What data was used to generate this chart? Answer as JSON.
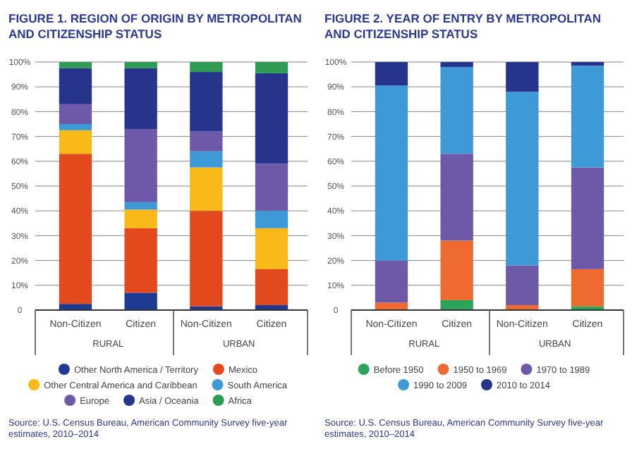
{
  "chart_data": [
    {
      "type": "bar",
      "stacked": true,
      "title": "FIGURE 1. REGION OF ORIGIN BY METROPOLITAN AND CITIZENSHIP STATUS",
      "categories": [
        "Non-Citizen",
        "Citizen",
        "Non-Citizen",
        "Citizen"
      ],
      "series": [
        {
          "name": "Other North America / Territory",
          "color": "#1f3a93",
          "values": [
            2.5,
            7,
            1.5,
            2
          ]
        },
        {
          "name": "Mexico",
          "color": "#e2491d",
          "values": [
            60.5,
            26,
            38.5,
            14.5
          ]
        },
        {
          "name": "Other Central America and Caribbean",
          "color": "#f9b919",
          "values": [
            9.5,
            7.5,
            17.5,
            16.5
          ]
        },
        {
          "name": "South America",
          "color": "#3d9ad6",
          "values": [
            2.5,
            3,
            6.5,
            7
          ]
        },
        {
          "name": "Europe",
          "color": "#6e59a8",
          "values": [
            8,
            29.5,
            8,
            19
          ]
        },
        {
          "name": "Asia / Oceania",
          "color": "#27348b",
          "values": [
            14.5,
            24.5,
            24,
            36.5
          ]
        },
        {
          "name": "Africa",
          "color": "#2e9b55",
          "values": [
            2.5,
            2.5,
            4,
            4.5
          ]
        }
      ],
      "ylim": [
        0,
        100
      ],
      "yticks": [
        {
          "value": 0,
          "label": "0"
        },
        {
          "value": 10,
          "label": "10%"
        },
        {
          "value": 20,
          "label": "20%"
        },
        {
          "value": 30,
          "label": "30%"
        },
        {
          "value": 40,
          "label": "40%"
        },
        {
          "value": 50,
          "label": "50%"
        },
        {
          "value": 60,
          "label": "60%"
        },
        {
          "value": 70,
          "label": "70%"
        },
        {
          "value": 80,
          "label": "80%"
        },
        {
          "value": 90,
          "label": "90%"
        },
        {
          "value": 100,
          "label": "100%"
        }
      ],
      "grid": "y",
      "legend": "bottom",
      "annotations": [
        "RURAL",
        "URBAN",
        "Source: U.S. Census Bureau, American Community Survey five-year estimates, 2010–2014"
      ]
    },
    {
      "type": "bar",
      "stacked": true,
      "title": "FIGURE 2. YEAR OF ENTRY BY METROPOLITAN AND CITIZENSHIP STATUS",
      "categories": [
        "Non-Citizen",
        "Citizen",
        "Non-Citizen",
        "Citizen"
      ],
      "series": [
        {
          "name": "Before 1950",
          "color": "#2ba55a",
          "values": [
            0,
            4,
            0,
            1.5
          ]
        },
        {
          "name": "1950 to 1969",
          "color": "#ee6a30",
          "values": [
            3,
            24,
            2,
            15
          ]
        },
        {
          "name": "1970 to 1989",
          "color": "#6e59a8",
          "values": [
            17,
            35,
            16,
            41
          ]
        },
        {
          "name": "1990 to 2009",
          "color": "#3d9ad6",
          "values": [
            70.5,
            35,
            70,
            41
          ]
        },
        {
          "name": "2010 to 2014",
          "color": "#27348b",
          "values": [
            9.5,
            2,
            12,
            1.5
          ]
        }
      ],
      "ylim": [
        0,
        100
      ],
      "yticks": [
        {
          "value": 0,
          "label": "0"
        },
        {
          "value": 10,
          "label": "10%"
        },
        {
          "value": 20,
          "label": "20%"
        },
        {
          "value": 30,
          "label": "30%"
        },
        {
          "value": 40,
          "label": "40%"
        },
        {
          "value": 50,
          "label": "50%"
        },
        {
          "value": 60,
          "label": "60%"
        },
        {
          "value": 70,
          "label": "70%"
        },
        {
          "value": 80,
          "label": "80%"
        },
        {
          "value": 90,
          "label": "90%"
        },
        {
          "value": 100,
          "label": "100%"
        }
      ],
      "grid": "y",
      "legend": "bottom",
      "annotations": [
        "RURAL",
        "URBAN",
        "Source: U.S. Census Bureau, American Community Survey five-year estimates, 2010–2014"
      ]
    }
  ]
}
